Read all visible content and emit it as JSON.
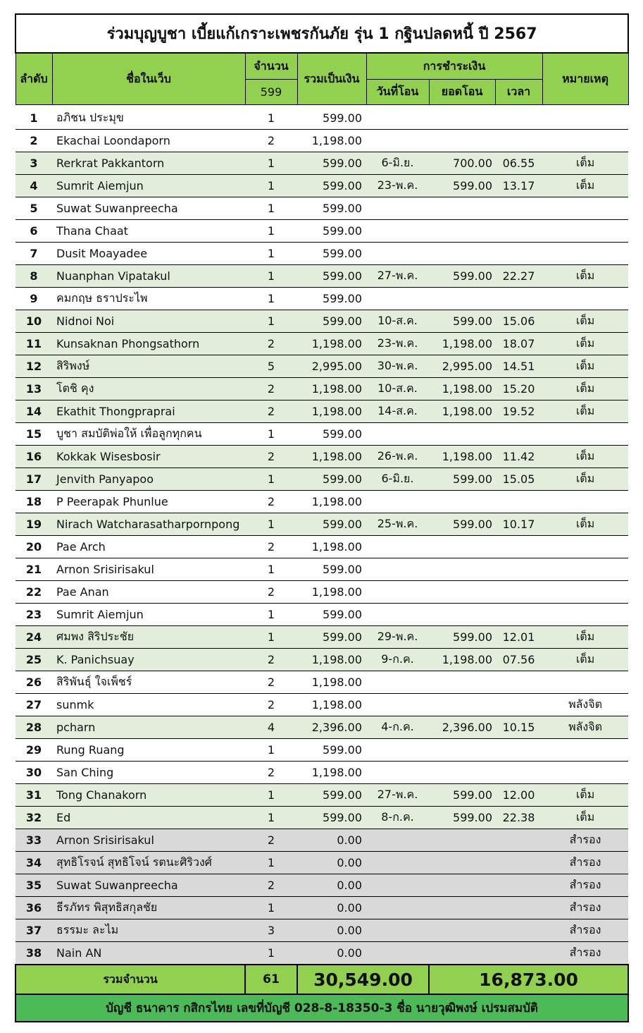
{
  "title": "ร่วมบุญบูชา เบี้ยแก้เกราะเพชรกันภัย รุ่น 1 กฐินปลดหนี้ ปี 2567",
  "headers": {
    "no": "ลำดับ",
    "name": "ชื่อในเว็บ",
    "qty": "จำนวน",
    "qty_count": "599",
    "total": "รวมเป็นเงิน",
    "payment": "การชำระเงิน",
    "date": "วันที่โอน",
    "transfer": "ยอดโอน",
    "time": "เวลา",
    "note": "หมายเหตุ"
  },
  "rows": [
    {
      "no": "1",
      "name": "อภิชน ประมุข",
      "qty": "1",
      "amount": "599.00",
      "date": "",
      "transfer": "",
      "time": "",
      "note": "",
      "status": "plain"
    },
    {
      "no": "2",
      "name": "Ekachai Loondaporn",
      "qty": "2",
      "amount": "1,198.00",
      "date": "",
      "transfer": "",
      "time": "",
      "note": "",
      "status": "plain"
    },
    {
      "no": "3",
      "name": "Rerkrat Pakkantorn",
      "qty": "1",
      "amount": "599.00",
      "date": "6-มิ.ย.",
      "transfer": "700.00",
      "time": "06.55",
      "note": "เต็ม",
      "status": "paid"
    },
    {
      "no": "4",
      "name": "Sumrit Aiemjun",
      "qty": "1",
      "amount": "599.00",
      "date": "23-พ.ค.",
      "transfer": "599.00",
      "time": "13.17",
      "note": "เต็ม",
      "status": "paid"
    },
    {
      "no": "5",
      "name": "Suwat Suwanpreecha",
      "qty": "1",
      "amount": "599.00",
      "date": "",
      "transfer": "",
      "time": "",
      "note": "",
      "status": "plain"
    },
    {
      "no": "6",
      "name": "Thana Chaat",
      "qty": "1",
      "amount": "599.00",
      "date": "",
      "transfer": "",
      "time": "",
      "note": "",
      "status": "plain"
    },
    {
      "no": "7",
      "name": "Dusit Moayadee",
      "qty": "1",
      "amount": "599.00",
      "date": "",
      "transfer": "",
      "time": "",
      "note": "",
      "status": "plain"
    },
    {
      "no": "8",
      "name": "Nuanphan Vipatakul",
      "qty": "1",
      "amount": "599.00",
      "date": "27-พ.ค.",
      "transfer": "599.00",
      "time": "22.27",
      "note": "เต็ม",
      "status": "paid"
    },
    {
      "no": "9",
      "name": "คมกฤษ ธราประไพ",
      "qty": "1",
      "amount": "599.00",
      "date": "",
      "transfer": "",
      "time": "",
      "note": "",
      "status": "plain"
    },
    {
      "no": "10",
      "name": "Nidnoi Noi",
      "qty": "1",
      "amount": "599.00",
      "date": "10-ส.ค.",
      "transfer": "599.00",
      "time": "15.06",
      "note": "เต็ม",
      "status": "paid"
    },
    {
      "no": "11",
      "name": "Kunsaknan Phongsathorn",
      "qty": "2",
      "amount": "1,198.00",
      "date": "23-พ.ค.",
      "transfer": "1,198.00",
      "time": "18.07",
      "note": "เต็ม",
      "status": "paid"
    },
    {
      "no": "12",
      "name": "สิริพงษ์",
      "qty": "5",
      "amount": "2,995.00",
      "date": "30-พ.ค.",
      "transfer": "2,995.00",
      "time": "14.51",
      "note": "เต็ม",
      "status": "paid"
    },
    {
      "no": "13",
      "name": "โตชิ คุง",
      "qty": "2",
      "amount": "1,198.00",
      "date": "10-ส.ค.",
      "transfer": "1,198.00",
      "time": "15.20",
      "note": "เต็ม",
      "status": "paid"
    },
    {
      "no": "14",
      "name": "Ekathit Thongpraprai",
      "qty": "2",
      "amount": "1,198.00",
      "date": "14-ส.ค.",
      "transfer": "1,198.00",
      "time": "19.52",
      "note": "เต็ม",
      "status": "paid"
    },
    {
      "no": "15",
      "name": "บูชา สมบัติพ่อให้ เพื่อลูกทุกคน",
      "qty": "1",
      "amount": "599.00",
      "date": "",
      "transfer": "",
      "time": "",
      "note": "",
      "status": "plain"
    },
    {
      "no": "16",
      "name": "Kokkak Wisesbosir",
      "qty": "2",
      "amount": "1,198.00",
      "date": "26-พ.ค.",
      "transfer": "1,198.00",
      "time": "11.42",
      "note": "เต็ม",
      "status": "paid"
    },
    {
      "no": "17",
      "name": "Jenvith Panyapoo",
      "qty": "1",
      "amount": "599.00",
      "date": "6-มิ.ย.",
      "transfer": "599.00",
      "time": "15.05",
      "note": "เต็ม",
      "status": "paid"
    },
    {
      "no": "18",
      "name": "P Peerapak Phunlue",
      "qty": "2",
      "amount": "1,198.00",
      "date": "",
      "transfer": "",
      "time": "",
      "note": "",
      "status": "plain"
    },
    {
      "no": "19",
      "name": "Nirach Watcharasatharpornpong",
      "qty": "1",
      "amount": "599.00",
      "date": "25-พ.ค.",
      "transfer": "599.00",
      "time": "10.17",
      "note": "เต็ม",
      "status": "paid"
    },
    {
      "no": "20",
      "name": "Pae Arch",
      "qty": "2",
      "amount": "1,198.00",
      "date": "",
      "transfer": "",
      "time": "",
      "note": "",
      "status": "plain"
    },
    {
      "no": "21",
      "name": "Arnon Srisirisakul",
      "qty": "1",
      "amount": "599.00",
      "date": "",
      "transfer": "",
      "time": "",
      "note": "",
      "status": "plain"
    },
    {
      "no": "22",
      "name": "Pae Anan",
      "qty": "2",
      "amount": "1,198.00",
      "date": "",
      "transfer": "",
      "time": "",
      "note": "",
      "status": "plain"
    },
    {
      "no": "23",
      "name": "Sumrit Aiemjun",
      "qty": "1",
      "amount": "599.00",
      "date": "",
      "transfer": "",
      "time": "",
      "note": "",
      "status": "plain"
    },
    {
      "no": "24",
      "name": "ศมพง สิริประชัย",
      "qty": "1",
      "amount": "599.00",
      "date": "29-พ.ค.",
      "transfer": "599.00",
      "time": "12.01",
      "note": "เต็ม",
      "status": "paid"
    },
    {
      "no": "25",
      "name": "K. Panichsuay",
      "qty": "2",
      "amount": "1,198.00",
      "date": "9-ก.ค.",
      "transfer": "1,198.00",
      "time": "07.56",
      "note": "เต็ม",
      "status": "paid"
    },
    {
      "no": "26",
      "name": "สิริพันธุ์ ใจเพ็ชร์",
      "qty": "2",
      "amount": "1,198.00",
      "date": "",
      "transfer": "",
      "time": "",
      "note": "",
      "status": "plain"
    },
    {
      "no": "27",
      "name": "sunmk",
      "qty": "2",
      "amount": "1,198.00",
      "date": "",
      "transfer": "",
      "time": "",
      "note": "พลังจิต",
      "status": "plain"
    },
    {
      "no": "28",
      "name": "pcharn",
      "qty": "4",
      "amount": "2,396.00",
      "date": "4-ก.ค.",
      "transfer": "2,396.00",
      "time": "10.15",
      "note": "พลังจิต",
      "status": "paid"
    },
    {
      "no": "29",
      "name": "Rung Ruang",
      "qty": "1",
      "amount": "599.00",
      "date": "",
      "transfer": "",
      "time": "",
      "note": "",
      "status": "plain"
    },
    {
      "no": "30",
      "name": "San Ching",
      "qty": "2",
      "amount": "1,198.00",
      "date": "",
      "transfer": "",
      "time": "",
      "note": "",
      "status": "plain"
    },
    {
      "no": "31",
      "name": "Tong Chanakorn",
      "qty": "1",
      "amount": "599.00",
      "date": "27-พ.ค.",
      "transfer": "599.00",
      "time": "12.00",
      "note": "เต็ม",
      "status": "paid"
    },
    {
      "no": "32",
      "name": "Ed",
      "qty": "1",
      "amount": "599.00",
      "date": "8-ก.ค.",
      "transfer": "599.00",
      "time": "22.38",
      "note": "เต็ม",
      "status": "paid"
    },
    {
      "no": "33",
      "name": "Arnon Srisirisakul",
      "qty": "2",
      "amount": "0.00",
      "date": "",
      "transfer": "",
      "time": "",
      "note": "สำรอง",
      "status": "reserve"
    },
    {
      "no": "34",
      "name": "สุทธิโรจน์ สุทธิโจน์ รตนะศิริวงศ์",
      "qty": "1",
      "amount": "0.00",
      "date": "",
      "transfer": "",
      "time": "",
      "note": "สำรอง",
      "status": "reserve"
    },
    {
      "no": "35",
      "name": "Suwat Suwanpreecha",
      "qty": "2",
      "amount": "0.00",
      "date": "",
      "transfer": "",
      "time": "",
      "note": "สำรอง",
      "status": "reserve"
    },
    {
      "no": "36",
      "name": "ธีรภัทร พิสุทธิสกุลชัย",
      "qty": "1",
      "amount": "0.00",
      "date": "",
      "transfer": "",
      "time": "",
      "note": "สำรอง",
      "status": "reserve"
    },
    {
      "no": "37",
      "name": "ธรรมะ ละไม",
      "qty": "3",
      "amount": "0.00",
      "date": "",
      "transfer": "",
      "time": "",
      "note": "สำรอง",
      "status": "reserve"
    },
    {
      "no": "38",
      "name": "Nain AN",
      "qty": "1",
      "amount": "0.00",
      "date": "",
      "transfer": "",
      "time": "",
      "note": "สำรอง",
      "status": "reserve"
    }
  ],
  "totals": {
    "label": "รวมจำนวน",
    "qty": "61",
    "amount": "30,549.00",
    "transferred": "16,873.00"
  },
  "bank_info": "บัญชี ธนาคาร กสิกรไทย เลขที่บัญชี 028-8-18350-3 ชื่อ นายวุฒิพงษ์ เปรมสมบัติ",
  "colors": {
    "header_green": "#92d050",
    "paid_row": "#e2eedb",
    "reserve_row": "#d9d9d9",
    "bank_green": "#4cbb57"
  }
}
